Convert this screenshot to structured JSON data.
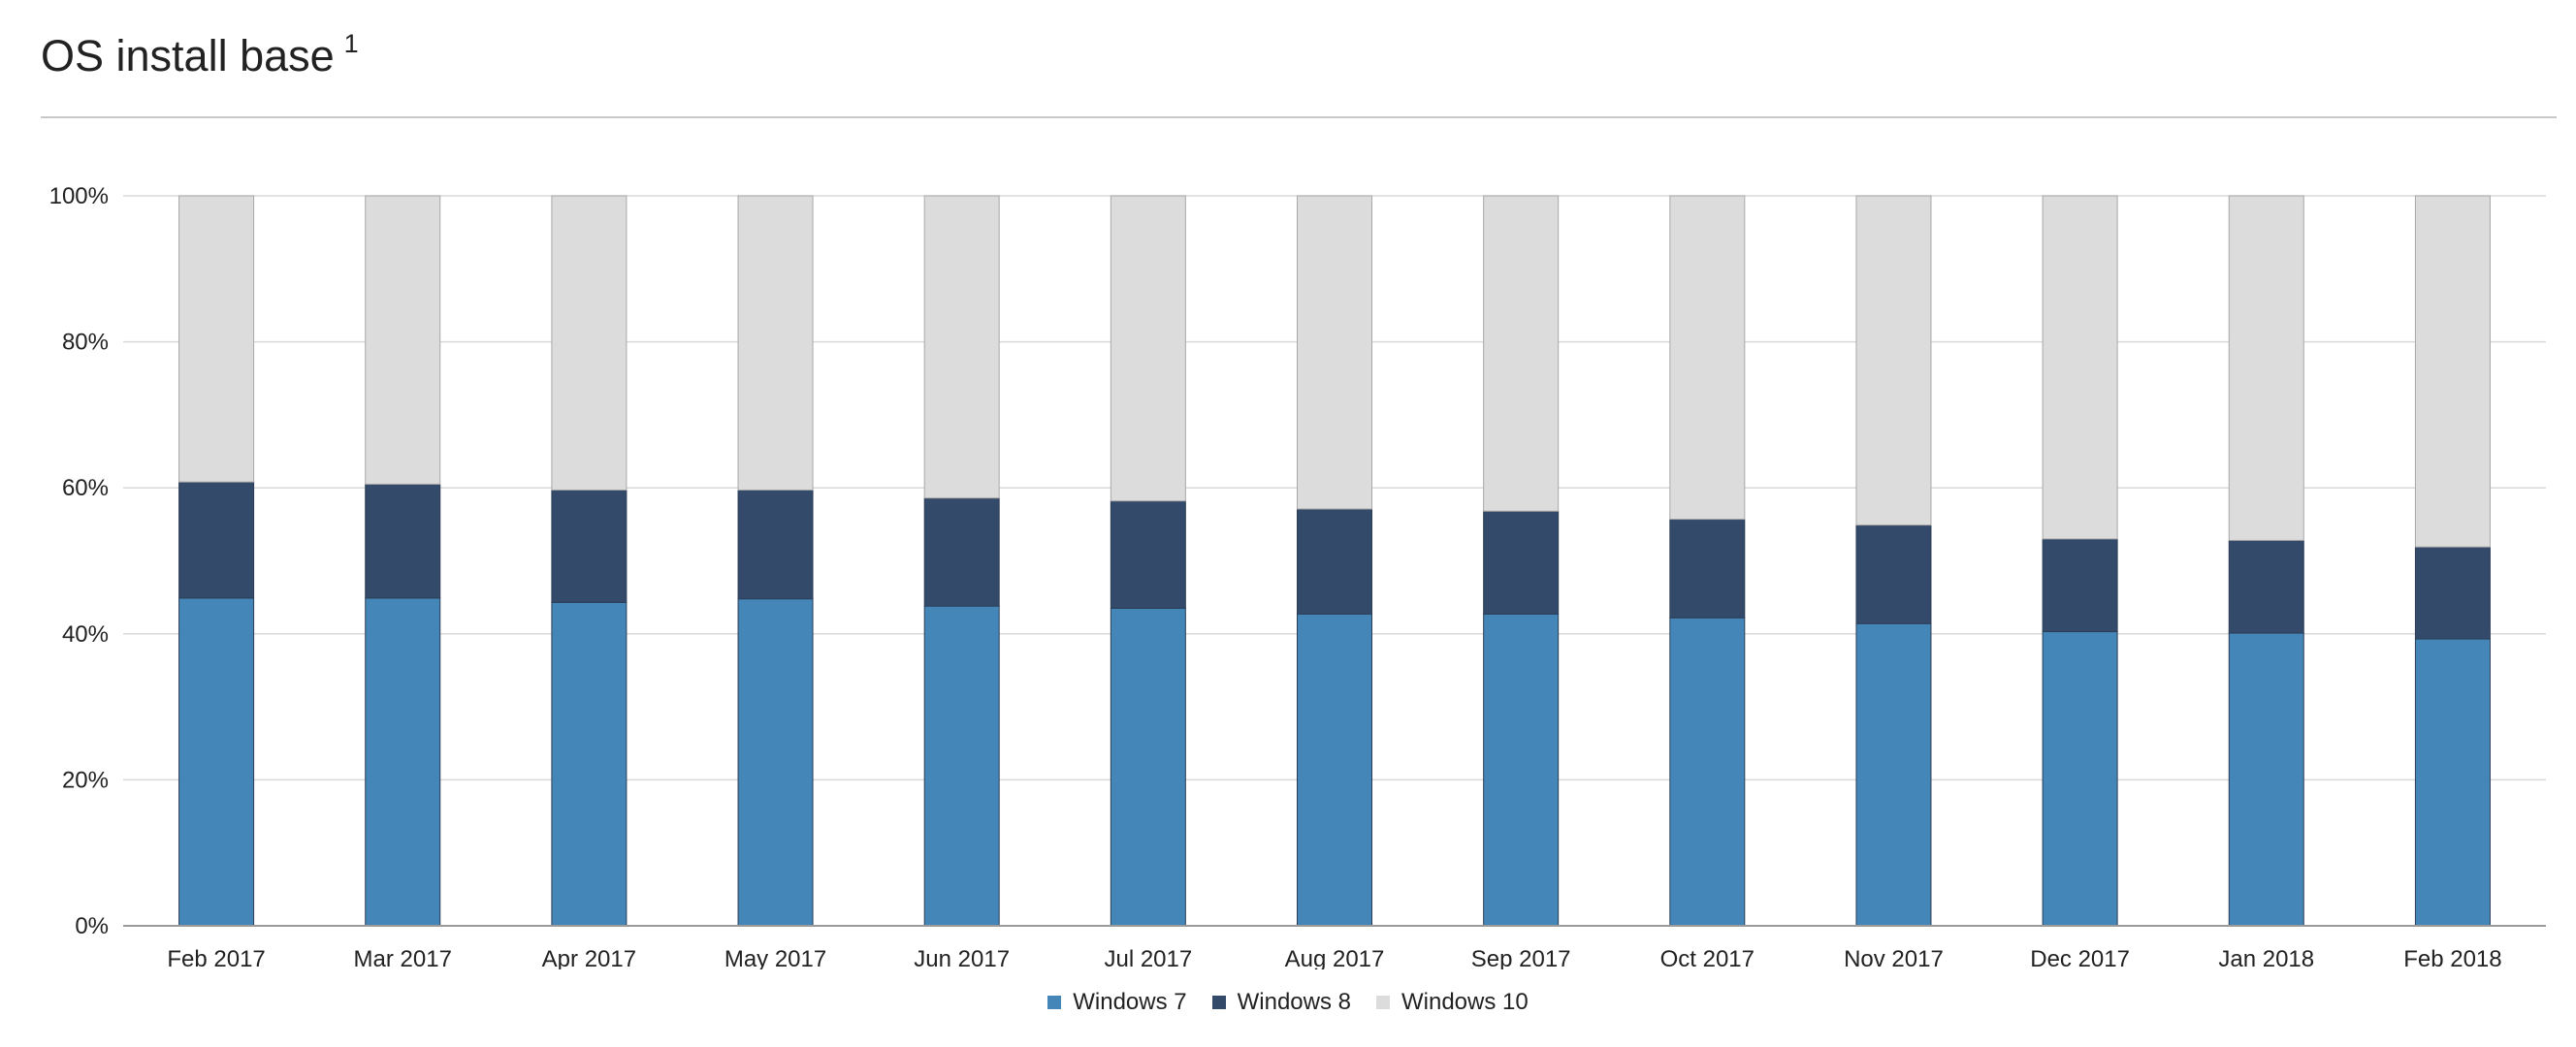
{
  "header": {
    "title": "OS install base",
    "footnote": "1"
  },
  "chart_data": {
    "type": "bar",
    "stacked": true,
    "categories": [
      "Feb 2017",
      "Mar 2017",
      "Apr 2017",
      "May 2017",
      "Jun 2017",
      "Jul 2017",
      "Aug 2017",
      "Sep 2017",
      "Oct 2017",
      "Nov 2017",
      "Dec 2017",
      "Jan 2018",
      "Feb 2018"
    ],
    "series": [
      {
        "name": "Windows 7",
        "color": "#4586B8",
        "values": [
          44.9,
          44.9,
          44.3,
          44.8,
          43.8,
          43.5,
          42.7,
          42.7,
          42.2,
          41.4,
          40.3,
          40.1,
          39.3
        ]
      },
      {
        "name": "Windows 8",
        "color": "#344A6B",
        "values": [
          15.9,
          15.6,
          15.4,
          14.9,
          14.8,
          14.7,
          14.4,
          14.1,
          13.5,
          13.5,
          12.7,
          12.7,
          12.6
        ]
      },
      {
        "name": "Windows 10",
        "color": "#DCDCDC",
        "values": [
          39.2,
          39.5,
          40.3,
          40.3,
          41.4,
          41.8,
          42.9,
          43.2,
          44.3,
          45.1,
          47.0,
          47.2,
          48.1
        ]
      }
    ],
    "yticks": [
      "0%",
      "20%",
      "40%",
      "60%",
      "80%",
      "100%"
    ],
    "ylim": [
      0,
      100
    ],
    "grid": true,
    "legend_position": "bottom"
  }
}
